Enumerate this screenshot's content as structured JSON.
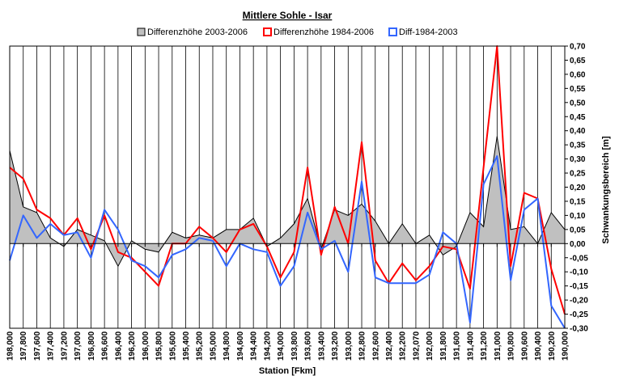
{
  "chart_data": {
    "type": "line",
    "title": "Mittlere Sohle - Isar",
    "xlabel": "Station [Fkm]",
    "ylabel": "Schwankungsbereich [m]",
    "ylim": [
      -0.3,
      0.7
    ],
    "ytick_step": 0.05,
    "ytick_labels": [
      "-0,30",
      "-0,25",
      "-0,20",
      "-0,15",
      "-0,10",
      "-0,05",
      "0,00",
      "0,05",
      "0,10",
      "0,15",
      "0,20",
      "0,25",
      "0,30",
      "0,35",
      "0,40",
      "0,45",
      "0,50",
      "0,55",
      "0,60",
      "0,65",
      "0,70"
    ],
    "x_tick_labels": [
      "198,000",
      "197,800",
      "197,600",
      "197,400",
      "197,200",
      "197,000",
      "196,800",
      "196,600",
      "196,400",
      "196,200",
      "196,000",
      "195,800",
      "195,600",
      "195,400",
      "195,200",
      "195,000",
      "194,800",
      "194,600",
      "194,400",
      "194,200",
      "194,000",
      "193,800",
      "193,600",
      "193,400",
      "193,200",
      "193,000",
      "192,800",
      "192,600",
      "192,400",
      "192,200",
      "192,070",
      "192,000",
      "191,800",
      "191,600",
      "191,400",
      "191,200",
      "191,000",
      "190,800",
      "190,600",
      "190,400",
      "190,200",
      "190,000"
    ],
    "legend": [
      {
        "name": "Differenzhöhe 2003-2006",
        "color": "#000000",
        "fill": "#c0c0c0",
        "kind": "area"
      },
      {
        "name": "Differenzhöhe 1984-2006",
        "color": "#ff0000",
        "kind": "line"
      },
      {
        "name": "Diff-1984-2003",
        "color": "#3366ff",
        "kind": "line"
      }
    ],
    "series": [
      {
        "name": "Differenzhöhe 2003-2006",
        "values": [
          0.33,
          0.13,
          0.11,
          0.02,
          -0.01,
          0.05,
          0.03,
          0.01,
          -0.08,
          0.01,
          -0.02,
          -0.03,
          0.04,
          0.02,
          0.03,
          0.02,
          0.05,
          0.05,
          0.09,
          -0.01,
          0.02,
          0.07,
          0.16,
          -0.02,
          0.12,
          0.1,
          0.14,
          0.08,
          0.0,
          0.07,
          0.0,
          0.03,
          -0.04,
          -0.01,
          0.11,
          0.06,
          0.38,
          0.05,
          0.06,
          0.0,
          0.11,
          0.05
        ]
      },
      {
        "name": "Differenzhöhe 1984-2006",
        "values": [
          0.27,
          0.23,
          0.12,
          0.09,
          0.03,
          0.09,
          -0.02,
          0.1,
          -0.03,
          -0.05,
          -0.1,
          -0.15,
          0.0,
          0.0,
          0.06,
          0.02,
          -0.03,
          0.05,
          0.07,
          -0.01,
          -0.12,
          -0.03,
          0.27,
          -0.04,
          0.13,
          0.0,
          0.36,
          -0.06,
          -0.14,
          -0.07,
          -0.13,
          -0.08,
          -0.01,
          -0.02,
          -0.16,
          0.27,
          0.7,
          -0.08,
          0.18,
          0.16,
          -0.09,
          -0.25
        ]
      },
      {
        "name": "Diff-1984-2003",
        "values": [
          -0.06,
          0.1,
          0.02,
          0.07,
          0.03,
          0.04,
          -0.05,
          0.12,
          0.05,
          -0.06,
          -0.08,
          -0.12,
          -0.04,
          -0.02,
          0.02,
          0.01,
          -0.08,
          0.0,
          -0.02,
          -0.03,
          -0.15,
          -0.08,
          0.11,
          -0.02,
          0.01,
          -0.1,
          0.22,
          -0.12,
          -0.14,
          -0.14,
          -0.14,
          -0.11,
          0.04,
          0.0,
          -0.28,
          0.21,
          0.31,
          -0.13,
          0.12,
          0.16,
          -0.22,
          -0.3
        ]
      }
    ]
  }
}
